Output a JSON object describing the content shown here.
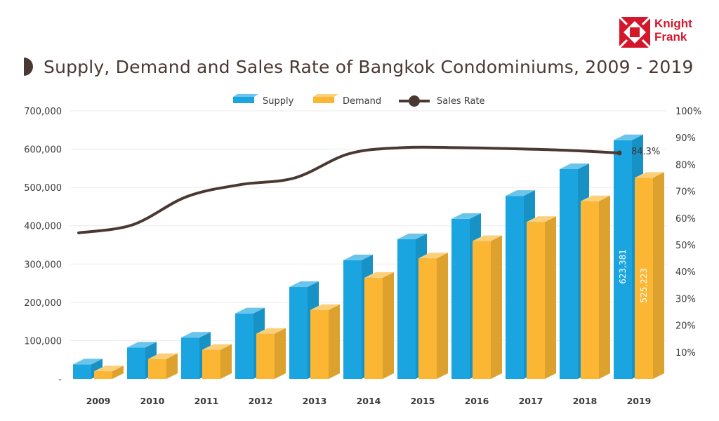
{
  "brand": {
    "name_line1": "Knight",
    "name_line2": "Frank",
    "color": "#d4182b"
  },
  "chart_data": {
    "type": "bar",
    "title": "Supply, Demand and Sales Rate of Bangkok Condominiums, 2009 - 2019",
    "categories": [
      "2009",
      "2010",
      "2011",
      "2012",
      "2013",
      "2014",
      "2015",
      "2016",
      "2017",
      "2018",
      "2019"
    ],
    "series": [
      {
        "name": "Supply",
        "kind": "bar",
        "axis": "left",
        "color": "#1ba5e0",
        "values": [
          38000,
          82000,
          108000,
          171000,
          240000,
          310000,
          365000,
          418000,
          478000,
          548000,
          623381
        ]
      },
      {
        "name": "Demand",
        "kind": "bar",
        "axis": "left",
        "color": "#fbb734",
        "values": [
          20000,
          52000,
          76000,
          118000,
          180000,
          264000,
          315000,
          360000,
          410000,
          464000,
          525223
        ]
      },
      {
        "name": "Sales Rate",
        "kind": "line",
        "axis": "right",
        "color": "#4a3932",
        "values": [
          54.5,
          57.5,
          68.0,
          72.5,
          75.0,
          84.0,
          86.3,
          86.3,
          85.9,
          85.3,
          84.3
        ]
      }
    ],
    "left_axis": {
      "ylim": [
        0,
        700000
      ],
      "ticks": [
        0,
        100000,
        200000,
        300000,
        400000,
        500000,
        600000,
        700000
      ],
      "tick_labels": [
        "-",
        "100,000",
        "200,000",
        "300,000",
        "400,000",
        "500,000",
        "600,000",
        "700,000"
      ]
    },
    "right_axis": {
      "ylim": [
        0,
        100
      ],
      "ticks": [
        10,
        20,
        30,
        40,
        50,
        60,
        70,
        80,
        90,
        100
      ],
      "tick_labels": [
        "10%",
        "20%",
        "30%",
        "40%",
        "50%",
        "60%",
        "70%",
        "80%",
        "90%",
        "100%"
      ]
    },
    "annotations": {
      "sales_rate_last": "84.3%",
      "supply_last": "623,381",
      "demand_last": "525,223"
    },
    "legend": [
      "Supply",
      "Demand",
      "Sales Rate"
    ],
    "legend_position": "top-center",
    "grid": true
  }
}
